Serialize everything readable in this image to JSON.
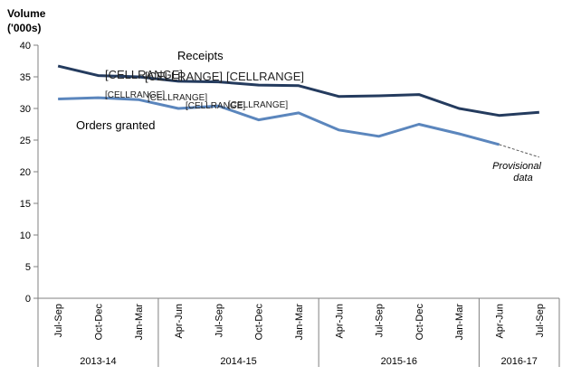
{
  "chart_data": {
    "type": "line",
    "ylabel_line1": "Volume",
    "ylabel_line2": "('000s)",
    "ylim": [
      0,
      40
    ],
    "yticks": [
      0,
      5,
      10,
      15,
      20,
      25,
      30,
      35,
      40
    ],
    "grid": false,
    "categories": [
      "Jul-Sep",
      "Oct-Dec",
      "Jan-Mar",
      "Apr-Jun",
      "Jul-Sep",
      "Oct-Dec",
      "Jan-Mar",
      "Apr-Jun",
      "Jul-Sep",
      "Oct-Dec",
      "Jan-Mar",
      "Apr-Jun",
      "Jul-Sep"
    ],
    "years": [
      {
        "label": "2013-14",
        "span": [
          0,
          2
        ]
      },
      {
        "label": "2014-15",
        "span": [
          3,
          6
        ]
      },
      {
        "label": "2015-16",
        "span": [
          7,
          10
        ]
      },
      {
        "label": "2016-17",
        "span": [
          11,
          12
        ]
      }
    ],
    "series": [
      {
        "name": "Receipts",
        "color": "#243b5e",
        "values": [
          36.7,
          35.2,
          35.0,
          34.3,
          34.2,
          33.7,
          33.6,
          31.9,
          32.0,
          32.2,
          30.0,
          28.9,
          29.4
        ]
      },
      {
        "name": "Orders granted",
        "color": "#5b86bd",
        "values": [
          31.5,
          31.7,
          31.4,
          30.0,
          30.4,
          28.2,
          29.3,
          26.6,
          25.6,
          27.5,
          26.0,
          24.3,
          22.3
        ],
        "provisional_from_index": 11
      }
    ],
    "annotations": {
      "provisional_line1": "Provisional",
      "provisional_line2": "data",
      "cell_range_big": [
        "[CELLRANGE]",
        "[CELLRANGE]",
        "[CELLRANGE]"
      ],
      "cell_range_small": [
        "[CELLRANGE]",
        "[CELLRANGE]",
        "[CELLRANGE]",
        "[CELLRANGE]"
      ]
    }
  }
}
